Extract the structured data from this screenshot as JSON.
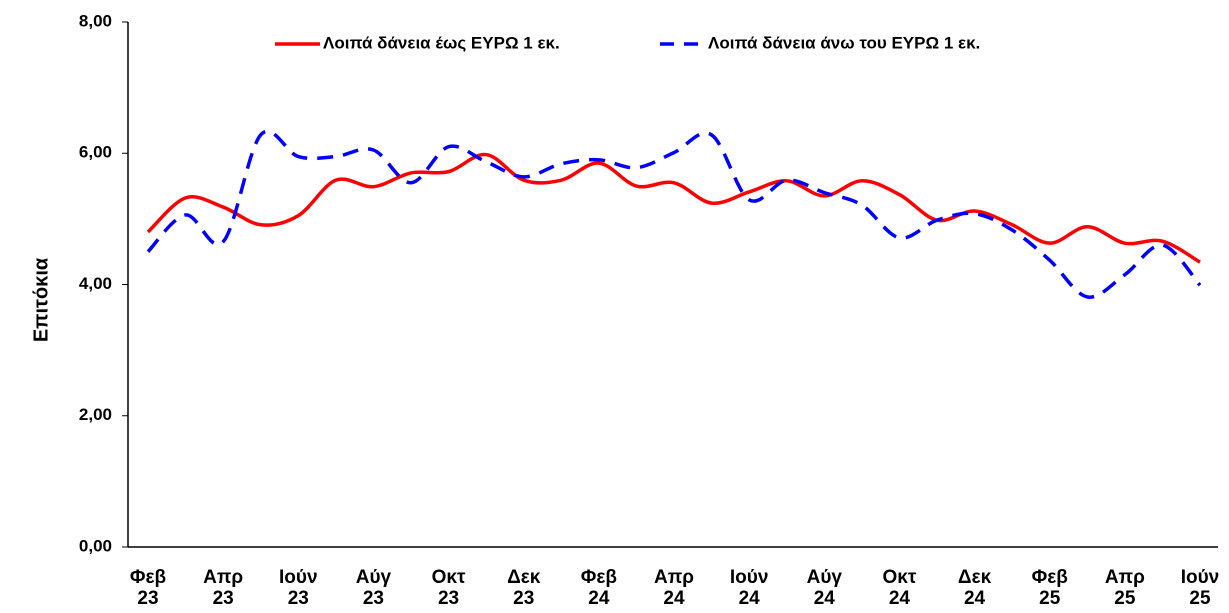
{
  "chart_data": {
    "type": "line",
    "y_label": "Επιτόκια",
    "categories": [
      "Φεβ 23",
      null,
      "Απρ 23",
      null,
      "Ιούν 23",
      null,
      "Αύγ 23",
      null,
      "Οκτ 23",
      null,
      "Δεκ 23",
      null,
      "Φεβ 24",
      null,
      "Απρ 24",
      null,
      "Ιούν 24",
      null,
      "Αύγ 24",
      null,
      "Οκτ 24",
      null,
      "Δεκ 24",
      null,
      "Φεβ 25",
      null,
      "Απρ 25",
      null,
      "Ιούν 25"
    ],
    "series": [
      {
        "name": "Λοιπά δάνεια έως ΕΥΡΩ 1 εκ.",
        "color": "#ff0000",
        "dash": false,
        "values": [
          4.8,
          5.32,
          5.18,
          4.91,
          5.05,
          5.59,
          5.49,
          5.7,
          5.72,
          5.98,
          5.59,
          5.59,
          5.85,
          5.5,
          5.55,
          5.24,
          5.41,
          5.58,
          5.35,
          5.58,
          5.37,
          4.98,
          5.12,
          4.91,
          4.63,
          4.88,
          4.63,
          4.66,
          4.34
        ]
      },
      {
        "name": "Λοιπά δάνεια άνω του ΕΥΡΩ 1 εκ.",
        "color": "#0000ff",
        "dash": true,
        "values": [
          4.5,
          5.06,
          4.65,
          6.28,
          5.95,
          5.95,
          6.05,
          5.55,
          6.1,
          5.87,
          5.64,
          5.84,
          5.9,
          5.78,
          6.01,
          6.28,
          5.29,
          5.59,
          5.4,
          5.21,
          4.71,
          4.98,
          5.08,
          4.83,
          4.37,
          3.81,
          4.15,
          4.6,
          3.99
        ]
      }
    ],
    "ylim": [
      0,
      8
    ],
    "yticks": [
      {
        "value": 0,
        "label": "0,00"
      },
      {
        "value": 2,
        "label": "2,00"
      },
      {
        "value": 4,
        "label": "4,00"
      },
      {
        "value": 6,
        "label": "6,00"
      },
      {
        "value": 8,
        "label": "8,00"
      }
    ],
    "legend": "top",
    "grid": false
  }
}
